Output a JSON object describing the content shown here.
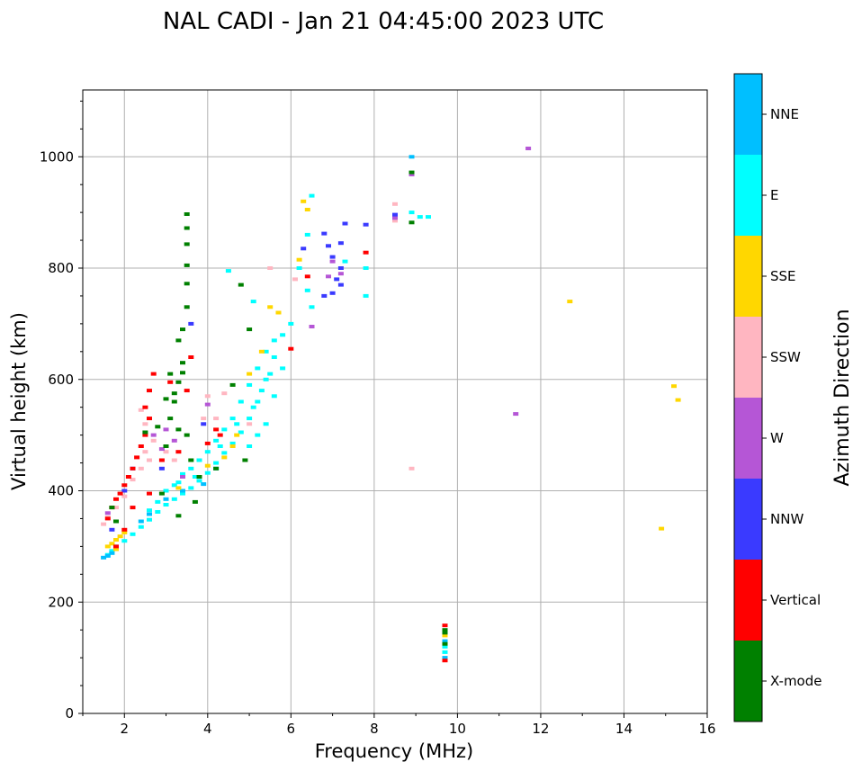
{
  "chart_data": {
    "type": "scatter",
    "title": "NAL CADI - Jan 21 04:45:00 2023 UTC",
    "xlabel": "Frequency (MHz)",
    "ylabel": "Virtual height (km)",
    "xlim": [
      1,
      16
    ],
    "ylim": [
      0,
      1120
    ],
    "xticks": [
      2,
      4,
      6,
      8,
      10,
      12,
      14,
      16
    ],
    "yticks": [
      0,
      200,
      400,
      600,
      800,
      1000
    ],
    "grid": true,
    "colorbar": {
      "title": "Azimuth Direction",
      "categories": [
        {
          "name": "X-mode",
          "color": "#008000"
        },
        {
          "name": "Vertical",
          "color": "#ff0000"
        },
        {
          "name": "NNW",
          "color": "#3a3aff"
        },
        {
          "name": "W",
          "color": "#b556d6"
        },
        {
          "name": "SSW",
          "color": "#ffb6c1"
        },
        {
          "name": "SSE",
          "color": "#ffd700"
        },
        {
          "name": "E",
          "color": "#00ffff"
        },
        {
          "name": "NNE",
          "color": "#00bfff"
        }
      ]
    },
    "series": [
      {
        "name": "E",
        "points": [
          [
            1.6,
            285
          ],
          [
            1.7,
            292
          ],
          [
            1.8,
            300
          ],
          [
            2.0,
            310
          ],
          [
            2.2,
            322
          ],
          [
            2.4,
            335
          ],
          [
            2.6,
            348
          ],
          [
            2.8,
            362
          ],
          [
            3.0,
            375
          ],
          [
            3.2,
            385
          ],
          [
            3.4,
            395
          ],
          [
            3.6,
            405
          ],
          [
            3.8,
            418
          ],
          [
            4.0,
            432
          ],
          [
            4.2,
            450
          ],
          [
            4.4,
            468
          ],
          [
            4.6,
            485
          ],
          [
            4.8,
            505
          ],
          [
            5.0,
            530
          ],
          [
            5.2,
            560
          ],
          [
            5.4,
            600
          ],
          [
            5.6,
            640
          ],
          [
            5.8,
            680
          ],
          [
            6.0,
            700
          ],
          [
            6.2,
            800
          ],
          [
            6.4,
            860
          ],
          [
            6.5,
            930
          ],
          [
            3.0,
            400
          ],
          [
            3.2,
            410
          ],
          [
            3.4,
            430
          ],
          [
            3.6,
            440
          ],
          [
            3.8,
            455
          ],
          [
            4.0,
            470
          ],
          [
            4.2,
            490
          ],
          [
            4.4,
            510
          ],
          [
            4.6,
            530
          ],
          [
            4.8,
            560
          ],
          [
            5.0,
            590
          ],
          [
            5.2,
            620
          ],
          [
            5.4,
            650
          ],
          [
            5.6,
            670
          ],
          [
            5.0,
            480
          ],
          [
            5.2,
            500
          ],
          [
            5.4,
            520
          ],
          [
            5.6,
            570
          ],
          [
            5.8,
            620
          ],
          [
            2.6,
            365
          ],
          [
            2.8,
            380
          ],
          [
            3.3,
            415
          ],
          [
            3.7,
            425
          ],
          [
            4.3,
            480
          ],
          [
            4.7,
            520
          ],
          [
            5.1,
            550
          ],
          [
            5.3,
            580
          ],
          [
            5.5,
            610
          ],
          [
            7.8,
            750
          ],
          [
            7.8,
            800
          ],
          [
            8.9,
            900
          ],
          [
            9.1,
            892
          ],
          [
            9.3,
            892
          ],
          [
            9.7,
            110
          ],
          [
            9.7,
            120
          ],
          [
            6.4,
            760
          ],
          [
            6.5,
            730
          ],
          [
            7.3,
            812
          ],
          [
            4.5,
            795
          ],
          [
            5.1,
            740
          ]
        ]
      },
      {
        "name": "NNE",
        "points": [
          [
            1.5,
            280
          ],
          [
            1.6,
            283
          ],
          [
            1.7,
            288
          ],
          [
            2.4,
            345
          ],
          [
            2.6,
            358
          ],
          [
            3.0,
            385
          ],
          [
            3.4,
            400
          ],
          [
            3.9,
            412
          ],
          [
            4.2,
            440
          ],
          [
            8.9,
            1000
          ],
          [
            9.7,
            100
          ],
          [
            9.7,
            130
          ]
        ]
      },
      {
        "name": "SSE",
        "points": [
          [
            1.6,
            300
          ],
          [
            1.7,
            305
          ],
          [
            1.8,
            312
          ],
          [
            1.9,
            318
          ],
          [
            2.0,
            325
          ],
          [
            1.8,
            295
          ],
          [
            3.3,
            405
          ],
          [
            4.0,
            445
          ],
          [
            4.4,
            460
          ],
          [
            4.7,
            500
          ],
          [
            5.0,
            610
          ],
          [
            5.3,
            650
          ],
          [
            5.5,
            730
          ],
          [
            5.7,
            720
          ],
          [
            6.2,
            815
          ],
          [
            6.4,
            905
          ],
          [
            6.3,
            920
          ],
          [
            9.7,
            140
          ],
          [
            12.7,
            740
          ],
          [
            15.2,
            588
          ],
          [
            15.3,
            563
          ],
          [
            14.9,
            332
          ],
          [
            4.6,
            480
          ]
        ]
      },
      {
        "name": "SSW",
        "points": [
          [
            1.5,
            340
          ],
          [
            1.6,
            352
          ],
          [
            1.8,
            370
          ],
          [
            2.0,
            390
          ],
          [
            2.2,
            420
          ],
          [
            2.4,
            440
          ],
          [
            2.6,
            455
          ],
          [
            2.5,
            470
          ],
          [
            2.7,
            490
          ],
          [
            2.5,
            520
          ],
          [
            2.4,
            545
          ],
          [
            3.0,
            470
          ],
          [
            3.2,
            455
          ],
          [
            4.0,
            570
          ],
          [
            4.2,
            530
          ],
          [
            5.0,
            520
          ],
          [
            5.5,
            800
          ],
          [
            6.1,
            780
          ],
          [
            8.9,
            440
          ],
          [
            8.5,
            885
          ],
          [
            8.5,
            915
          ],
          [
            3.9,
            530
          ],
          [
            4.4,
            575
          ]
        ]
      },
      {
        "name": "W",
        "points": [
          [
            1.6,
            360
          ],
          [
            2.7,
            500
          ],
          [
            2.9,
            475
          ],
          [
            3.0,
            510
          ],
          [
            3.4,
            425
          ],
          [
            4.0,
            555
          ],
          [
            6.9,
            785
          ],
          [
            7.2,
            790
          ],
          [
            7.0,
            812
          ],
          [
            8.5,
            890
          ],
          [
            8.9,
            968
          ],
          [
            11.7,
            1015
          ],
          [
            11.4,
            538
          ],
          [
            3.2,
            490
          ],
          [
            6.5,
            695
          ]
        ]
      },
      {
        "name": "NNW",
        "points": [
          [
            1.7,
            330
          ],
          [
            2.0,
            400
          ],
          [
            2.2,
            440
          ],
          [
            6.8,
            862
          ],
          [
            7.2,
            845
          ],
          [
            7.8,
            878
          ],
          [
            7.0,
            820
          ],
          [
            7.2,
            800
          ],
          [
            6.8,
            750
          ],
          [
            7.0,
            755
          ],
          [
            6.9,
            840
          ],
          [
            7.1,
            780
          ],
          [
            7.2,
            770
          ],
          [
            8.5,
            896
          ],
          [
            3.6,
            700
          ],
          [
            3.9,
            520
          ],
          [
            2.9,
            440
          ],
          [
            7.3,
            880
          ],
          [
            6.3,
            835
          ]
        ]
      },
      {
        "name": "Vertical",
        "points": [
          [
            1.6,
            350
          ],
          [
            1.7,
            370
          ],
          [
            1.8,
            385
          ],
          [
            1.9,
            395
          ],
          [
            2.0,
            410
          ],
          [
            2.1,
            425
          ],
          [
            2.2,
            440
          ],
          [
            2.3,
            460
          ],
          [
            2.4,
            480
          ],
          [
            2.5,
            500
          ],
          [
            2.6,
            530
          ],
          [
            2.5,
            550
          ],
          [
            2.6,
            580
          ],
          [
            2.7,
            610
          ],
          [
            1.8,
            300
          ],
          [
            2.0,
            330
          ],
          [
            2.2,
            370
          ],
          [
            3.5,
            580
          ],
          [
            4.0,
            485
          ],
          [
            4.2,
            510
          ],
          [
            4.3,
            500
          ],
          [
            6.0,
            655
          ],
          [
            6.4,
            785
          ],
          [
            7.8,
            828
          ],
          [
            9.7,
            95
          ],
          [
            9.7,
            158
          ],
          [
            2.6,
            395
          ],
          [
            2.9,
            455
          ],
          [
            3.3,
            470
          ],
          [
            3.1,
            595
          ],
          [
            3.6,
            640
          ]
        ]
      },
      {
        "name": "X-mode",
        "points": [
          [
            3.5,
            897
          ],
          [
            3.5,
            872
          ],
          [
            3.5,
            843
          ],
          [
            3.5,
            805
          ],
          [
            3.5,
            772
          ],
          [
            3.5,
            730
          ],
          [
            3.4,
            690
          ],
          [
            3.3,
            670
          ],
          [
            3.4,
            630
          ],
          [
            3.4,
            612
          ],
          [
            3.3,
            595
          ],
          [
            3.1,
            610
          ],
          [
            3.2,
            575
          ],
          [
            3.2,
            560
          ],
          [
            3.0,
            565
          ],
          [
            3.3,
            510
          ],
          [
            3.5,
            500
          ],
          [
            3.6,
            455
          ],
          [
            3.8,
            425
          ],
          [
            4.2,
            440
          ],
          [
            3.7,
            380
          ],
          [
            3.3,
            355
          ],
          [
            2.8,
            515
          ],
          [
            3.1,
            530
          ],
          [
            3.0,
            480
          ],
          [
            2.5,
            505
          ],
          [
            1.7,
            370
          ],
          [
            1.8,
            345
          ],
          [
            4.8,
            770
          ],
          [
            5.0,
            690
          ],
          [
            8.9,
            972
          ],
          [
            8.9,
            882
          ],
          [
            9.7,
            145
          ],
          [
            9.7,
            150
          ],
          [
            9.7,
            125
          ],
          [
            4.6,
            590
          ],
          [
            4.9,
            455
          ],
          [
            2.9,
            395
          ]
        ]
      }
    ]
  }
}
